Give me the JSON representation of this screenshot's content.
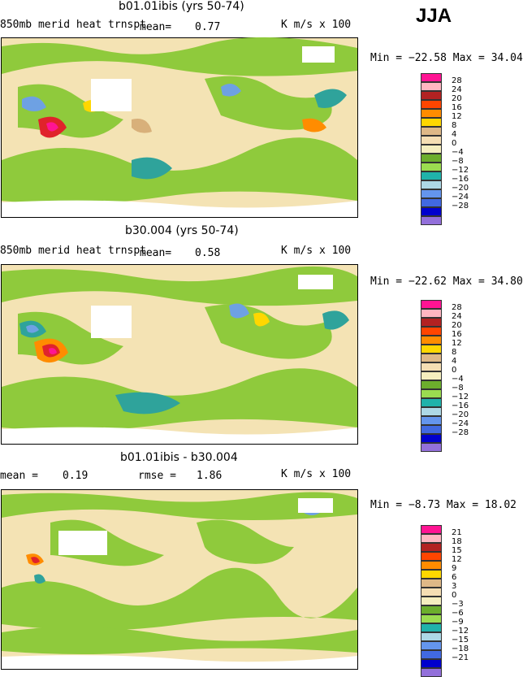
{
  "season": "JJA",
  "panels": [
    {
      "title": "b01.01ibis (yrs 50-74)",
      "field": "850mb merid heat trnspt",
      "mean_label": "mean=",
      "mean_value": "0.77",
      "units": "K m/s x 100",
      "minmax": "Min = −22.58 Max =  34.04",
      "legend_levels": [
        "28",
        "24",
        "20",
        "16",
        "12",
        "8",
        "4",
        "0",
        "−4",
        "−8",
        "−12",
        "−16",
        "−20",
        "−24",
        "−28"
      ],
      "legend_colors": [
        "#ff1493",
        "#ffb6c1",
        "#b22222",
        "#ff4500",
        "#ff8c00",
        "#ffd700",
        "#deb887",
        "#f5deb3",
        "#f5eebe",
        "#6cae2c",
        "#9bdc50",
        "#20b2aa",
        "#add8e6",
        "#6495ed",
        "#4169e1",
        "#0000cd",
        "#9370db"
      ]
    },
    {
      "title": "b30.004 (yrs 50-74)",
      "field": "850mb merid heat trnspt",
      "mean_label": "mean=",
      "mean_value": "0.58",
      "units": "K m/s x 100",
      "minmax": "Min = −22.62 Max =  34.80",
      "legend_levels": [
        "28",
        "24",
        "20",
        "16",
        "12",
        "8",
        "4",
        "0",
        "−4",
        "−8",
        "−12",
        "−16",
        "−20",
        "−24",
        "−28"
      ],
      "legend_colors": [
        "#ff1493",
        "#ffb6c1",
        "#b22222",
        "#ff4500",
        "#ff8c00",
        "#ffd700",
        "#deb887",
        "#f5deb3",
        "#f5eebe",
        "#6cae2c",
        "#9bdc50",
        "#20b2aa",
        "#add8e6",
        "#6495ed",
        "#4169e1",
        "#0000cd",
        "#9370db"
      ]
    },
    {
      "title": "b01.01ibis - b30.004",
      "mean_label": "mean =",
      "mean_value": "0.19",
      "rmse_label": "rmse =",
      "rmse_value": "1.86",
      "units": "K m/s x 100",
      "minmax": "Min =  −8.73 Max =  18.02",
      "legend_levels": [
        "21",
        "18",
        "15",
        "12",
        "9",
        "6",
        "3",
        "0",
        "−3",
        "−6",
        "−9",
        "−12",
        "−15",
        "−18",
        "−21"
      ],
      "legend_colors": [
        "#ff1493",
        "#ffb6c1",
        "#b22222",
        "#ff4500",
        "#ff8c00",
        "#ffd700",
        "#deb887",
        "#f5deb3",
        "#f5eebe",
        "#6cae2c",
        "#9bdc50",
        "#20b2aa",
        "#add8e6",
        "#6495ed",
        "#4169e1",
        "#0000cd",
        "#9370db"
      ]
    }
  ]
}
